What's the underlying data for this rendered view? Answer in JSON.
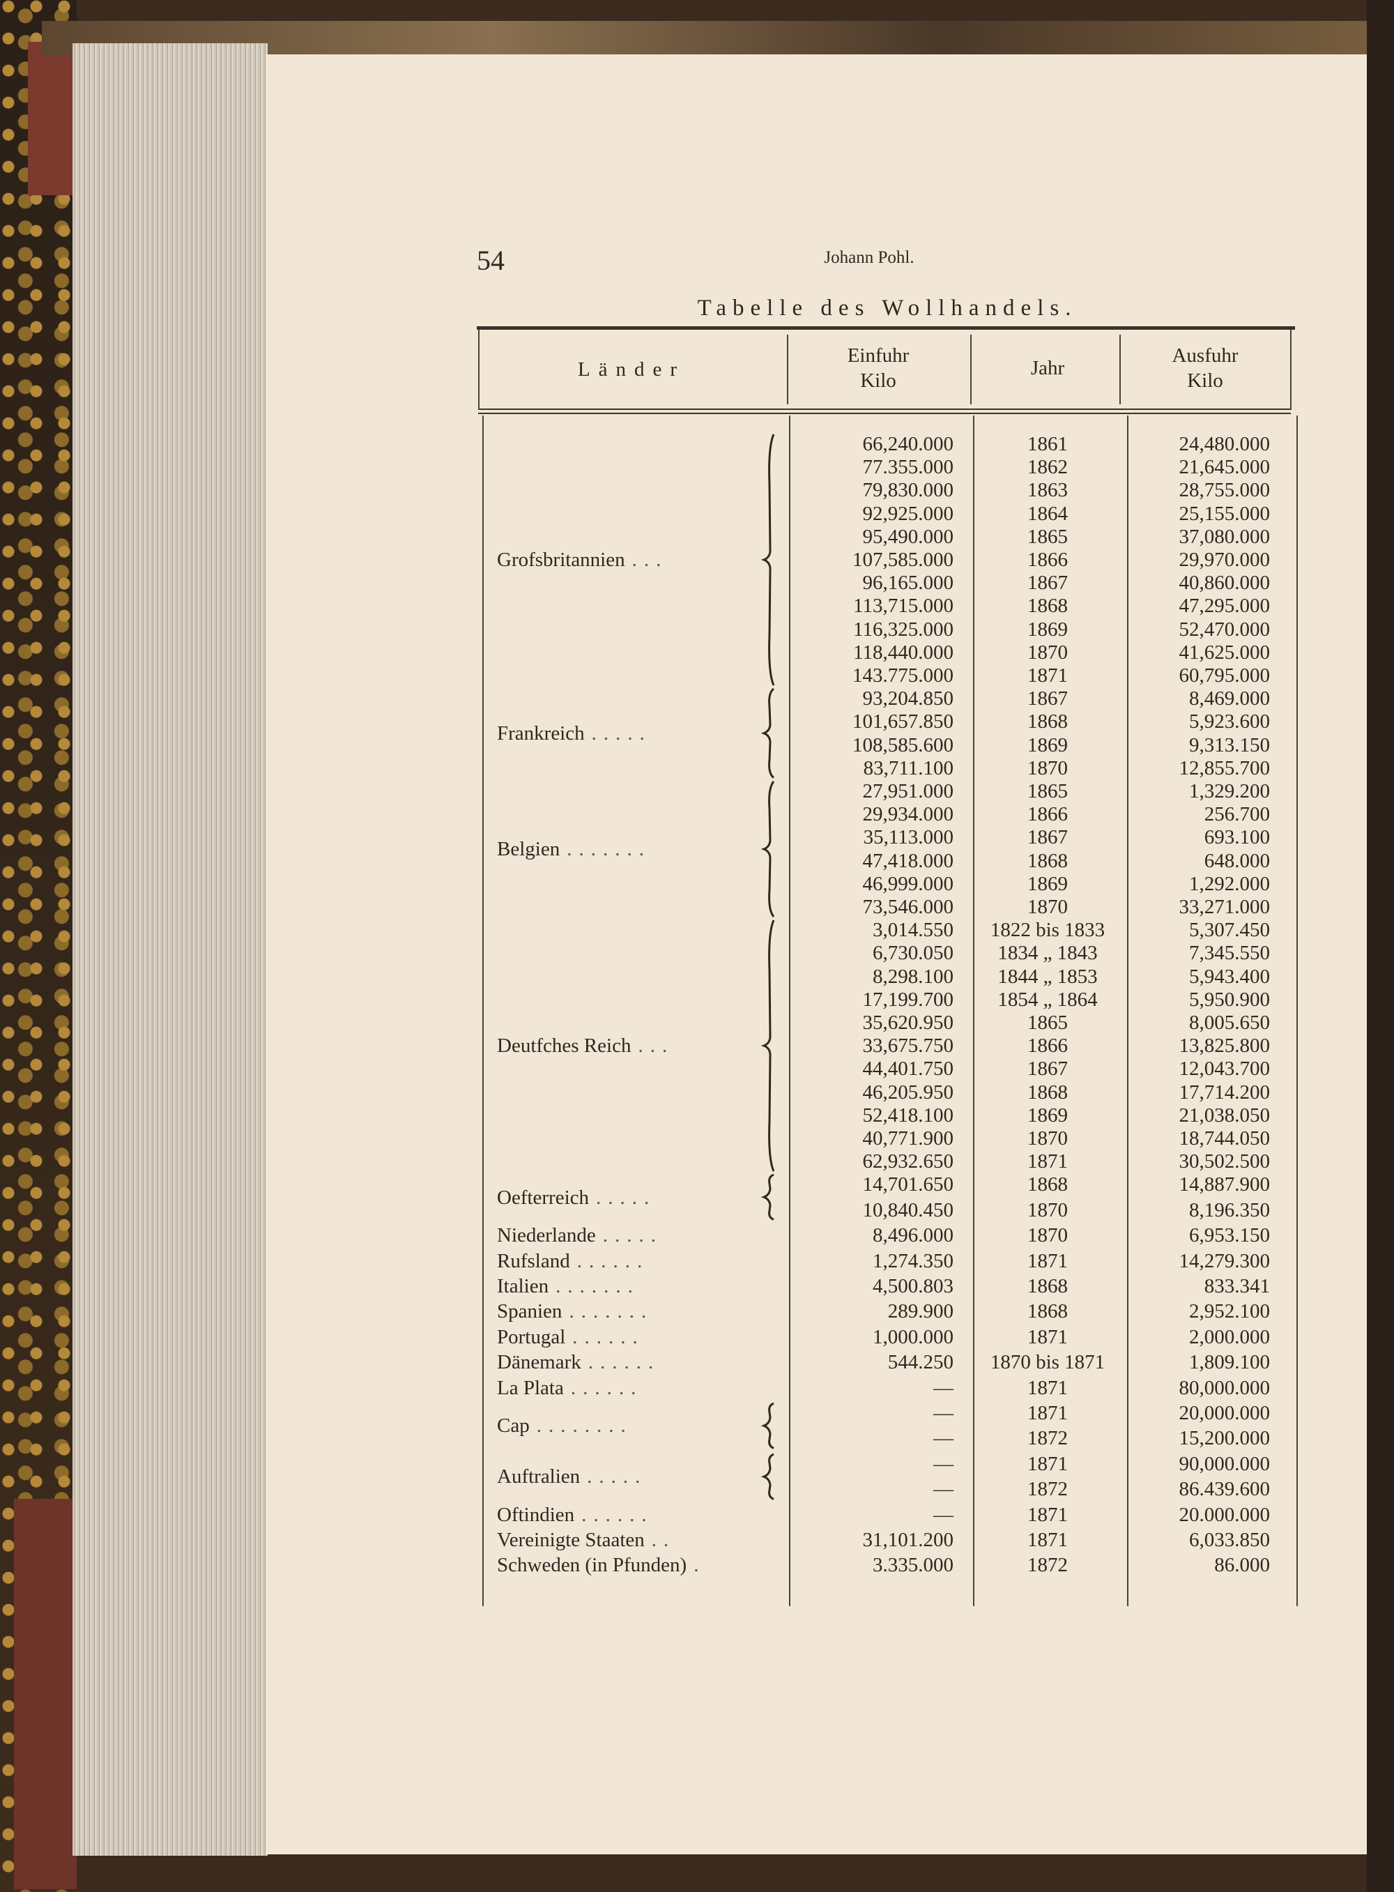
{
  "page_number": "54",
  "running_head": "Johann Pohl.",
  "title": "Tabelle des Wollhandels.",
  "headers": {
    "country": "Länder",
    "import": [
      "Einfuhr",
      "Kilo"
    ],
    "year": "Jahr",
    "export": [
      "Ausfuhr",
      "Kilo"
    ]
  },
  "groups": [
    {
      "name": "Grofsbritannien",
      "bracket": true,
      "rows": [
        {
          "einfuhr": "66,240.000",
          "jahr": "1861",
          "ausfuhr": "24,480.000"
        },
        {
          "einfuhr": "77.355.000",
          "jahr": "1862",
          "ausfuhr": "21,645.000"
        },
        {
          "einfuhr": "79,830.000",
          "jahr": "1863",
          "ausfuhr": "28,755.000"
        },
        {
          "einfuhr": "92,925.000",
          "jahr": "1864",
          "ausfuhr": "25,155.000"
        },
        {
          "einfuhr": "95,490.000",
          "jahr": "1865",
          "ausfuhr": "37,080.000"
        },
        {
          "einfuhr": "107,585.000",
          "jahr": "1866",
          "ausfuhr": "29,970.000"
        },
        {
          "einfuhr": "96,165.000",
          "jahr": "1867",
          "ausfuhr": "40,860.000"
        },
        {
          "einfuhr": "113,715.000",
          "jahr": "1868",
          "ausfuhr": "47,295.000"
        },
        {
          "einfuhr": "116,325.000",
          "jahr": "1869",
          "ausfuhr": "52,470.000"
        },
        {
          "einfuhr": "118,440.000",
          "jahr": "1870",
          "ausfuhr": "41,625.000"
        },
        {
          "einfuhr": "143.775.000",
          "jahr": "1871",
          "ausfuhr": "60,795.000"
        }
      ]
    },
    {
      "name": "Frankreich",
      "bracket": true,
      "rows": [
        {
          "einfuhr": "93,204.850",
          "jahr": "1867",
          "ausfuhr": "8,469.000"
        },
        {
          "einfuhr": "101,657.850",
          "jahr": "1868",
          "ausfuhr": "5,923.600"
        },
        {
          "einfuhr": "108,585.600",
          "jahr": "1869",
          "ausfuhr": "9,313.150"
        },
        {
          "einfuhr": "83,711.100",
          "jahr": "1870",
          "ausfuhr": "12,855.700"
        }
      ]
    },
    {
      "name": "Belgien",
      "bracket": true,
      "rows": [
        {
          "einfuhr": "27,951.000",
          "jahr": "1865",
          "ausfuhr": "1,329.200"
        },
        {
          "einfuhr": "29,934.000",
          "jahr": "1866",
          "ausfuhr": "256.700"
        },
        {
          "einfuhr": "35,113.000",
          "jahr": "1867",
          "ausfuhr": "693.100"
        },
        {
          "einfuhr": "47,418.000",
          "jahr": "1868",
          "ausfuhr": "648.000"
        },
        {
          "einfuhr": "46,999.000",
          "jahr": "1869",
          "ausfuhr": "1,292.000"
        },
        {
          "einfuhr": "73,546.000",
          "jahr": "1870",
          "ausfuhr": "33,271.000"
        }
      ]
    },
    {
      "name": "Deutfches Reich",
      "bracket": true,
      "rows": [
        {
          "einfuhr": "3,014.550",
          "jahr": "1822 bis 1833",
          "ausfuhr": "5,307.450"
        },
        {
          "einfuhr": "6,730.050",
          "jahr": "1834 „ 1843",
          "ausfuhr": "7,345.550"
        },
        {
          "einfuhr": "8,298.100",
          "jahr": "1844 „ 1853",
          "ausfuhr": "5,943.400"
        },
        {
          "einfuhr": "17,199.700",
          "jahr": "1854 „ 1864",
          "ausfuhr": "5,950.900"
        },
        {
          "einfuhr": "35,620.950",
          "jahr": "1865",
          "ausfuhr": "8,005.650"
        },
        {
          "einfuhr": "33,675.750",
          "jahr": "1866",
          "ausfuhr": "13,825.800"
        },
        {
          "einfuhr": "44,401.750",
          "jahr": "1867",
          "ausfuhr": "12,043.700"
        },
        {
          "einfuhr": "46,205.950",
          "jahr": "1868",
          "ausfuhr": "17,714.200"
        },
        {
          "einfuhr": "52,418.100",
          "jahr": "1869",
          "ausfuhr": "21,038.050"
        },
        {
          "einfuhr": "40,771.900",
          "jahr": "1870",
          "ausfuhr": "18,744.050"
        },
        {
          "einfuhr": "62,932.650",
          "jahr": "1871",
          "ausfuhr": "30,502.500"
        }
      ]
    },
    {
      "name": "Oefterreich",
      "bracket": true,
      "rows": [
        {
          "einfuhr": "14,701.650",
          "jahr": "1868",
          "ausfuhr": "14,887.900"
        },
        {
          "einfuhr": "10,840.450",
          "jahr": "1870",
          "ausfuhr": "8,196.350"
        }
      ]
    },
    {
      "name": "Niederlande",
      "bracket": false,
      "rows": [
        {
          "einfuhr": "8,496.000",
          "jahr": "1870",
          "ausfuhr": "6,953.150"
        }
      ]
    },
    {
      "name": "Rufsland",
      "bracket": false,
      "rows": [
        {
          "einfuhr": "1,274.350",
          "jahr": "1871",
          "ausfuhr": "14,279.300"
        }
      ]
    },
    {
      "name": "Italien",
      "bracket": false,
      "rows": [
        {
          "einfuhr": "4,500.803",
          "jahr": "1868",
          "ausfuhr": "833.341"
        }
      ]
    },
    {
      "name": "Spanien",
      "bracket": false,
      "rows": [
        {
          "einfuhr": "289.900",
          "jahr": "1868",
          "ausfuhr": "2,952.100"
        }
      ]
    },
    {
      "name": "Portugal",
      "bracket": false,
      "rows": [
        {
          "einfuhr": "1,000.000",
          "jahr": "1871",
          "ausfuhr": "2,000.000"
        }
      ]
    },
    {
      "name": "Dänemark",
      "bracket": false,
      "rows": [
        {
          "einfuhr": "544.250",
          "jahr": "1870 bis 1871",
          "ausfuhr": "1,809.100"
        }
      ]
    },
    {
      "name": "La Plata",
      "bracket": false,
      "rows": [
        {
          "einfuhr": "—",
          "jahr": "1871",
          "ausfuhr": "80,000.000"
        }
      ]
    },
    {
      "name": "Cap",
      "bracket": true,
      "rows": [
        {
          "einfuhr": "—",
          "jahr": "1871",
          "ausfuhr": "20,000.000"
        },
        {
          "einfuhr": "—",
          "jahr": "1872",
          "ausfuhr": "15,200.000"
        }
      ]
    },
    {
      "name": "Auftralien",
      "bracket": true,
      "rows": [
        {
          "einfuhr": "—",
          "jahr": "1871",
          "ausfuhr": "90,000.000"
        },
        {
          "einfuhr": "—",
          "jahr": "1872",
          "ausfuhr": "86.439.600"
        }
      ]
    },
    {
      "name": "Oftindien",
      "bracket": false,
      "rows": [
        {
          "einfuhr": "—",
          "jahr": "1871",
          "ausfuhr": "20.000.000"
        }
      ]
    },
    {
      "name": "Vereinigte Staaten",
      "bracket": false,
      "rows": [
        {
          "einfuhr": "31,101.200",
          "jahr": "1871",
          "ausfuhr": "6,033.850"
        }
      ]
    },
    {
      "name": "Schweden (in Pfunden)",
      "bracket": false,
      "rows": [
        {
          "einfuhr": "3.335.000",
          "jahr": "1872",
          "ausfuhr": "86.000"
        }
      ]
    }
  ]
}
